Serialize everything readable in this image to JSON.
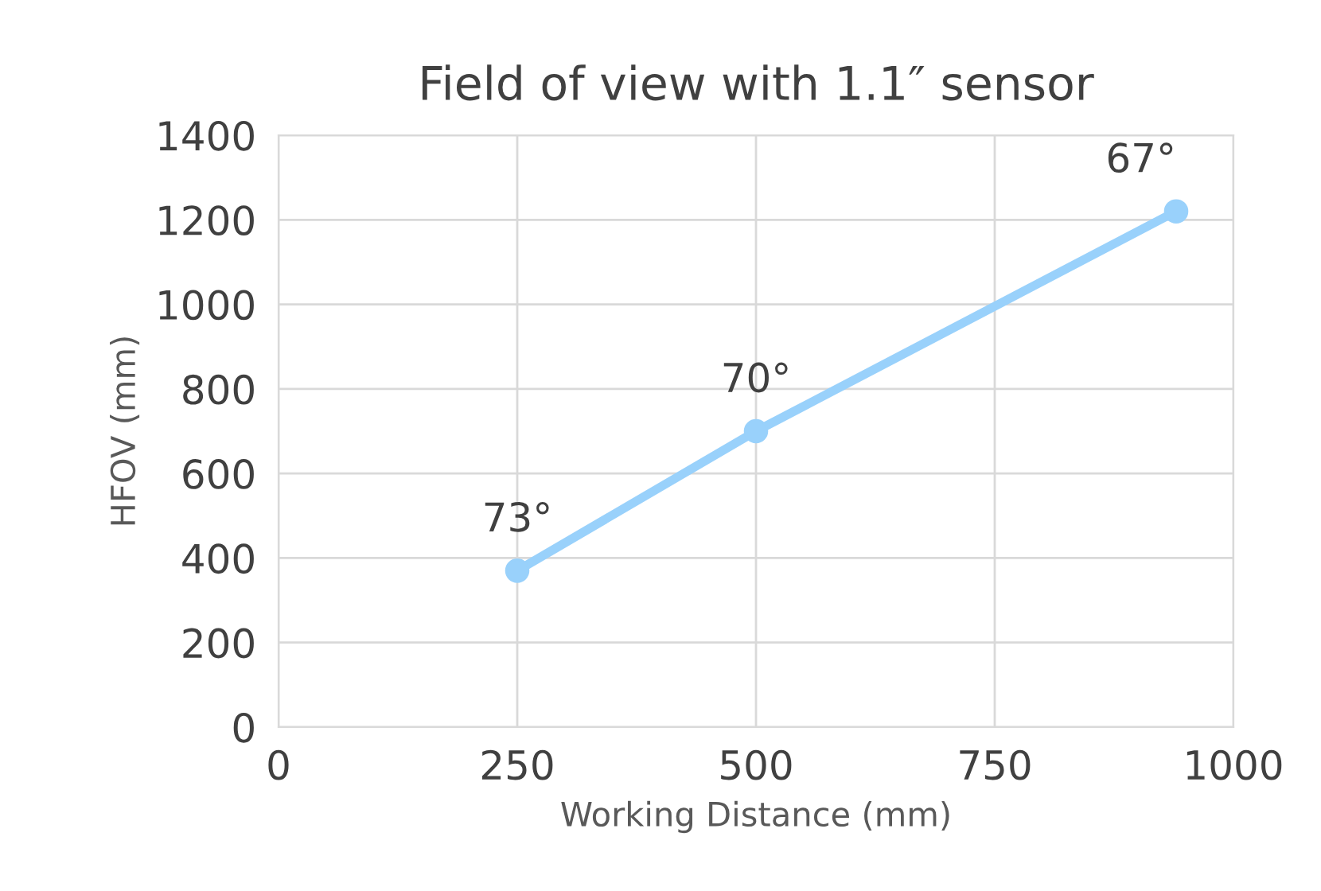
{
  "chart_data": {
    "type": "line",
    "title": "Field of view with 1.1″ sensor",
    "xlabel": "Working Distance (mm)",
    "ylabel": "HFOV (mm)",
    "x": [
      250,
      500,
      940
    ],
    "series": [
      {
        "color": "#99d1fb",
        "values": [
          370,
          700,
          1220
        ]
      }
    ],
    "annotations": [
      {
        "text": "73°",
        "x": 250,
        "y": 370
      },
      {
        "text": "70°",
        "x": 500,
        "y": 700
      },
      {
        "text": "67°",
        "x": 940,
        "y": 1220
      }
    ],
    "xlim": [
      0,
      1000
    ],
    "xticks": [
      0,
      250,
      500,
      750,
      1000
    ],
    "ylim": [
      0,
      1400
    ],
    "yticks": [
      0,
      200,
      400,
      600,
      800,
      1000,
      1200,
      1400
    ],
    "grid": true,
    "marker": "circle",
    "line_style": "solid"
  }
}
